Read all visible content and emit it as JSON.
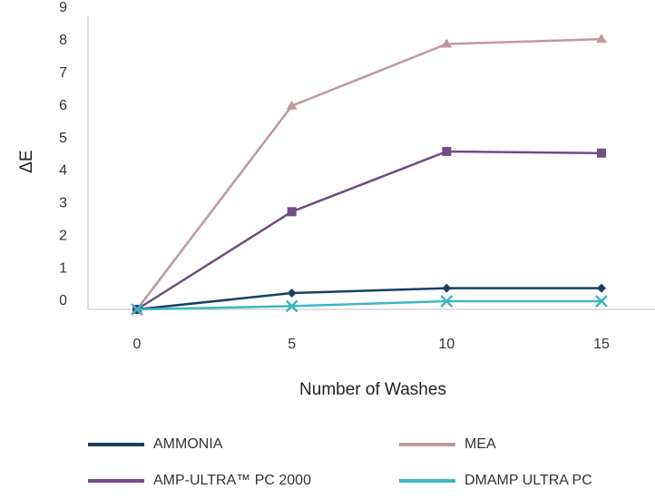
{
  "chart_data": {
    "type": "line",
    "title": "",
    "xlabel": "Number of Washes",
    "ylabel": "ΔE",
    "x": [
      0,
      5,
      10,
      15
    ],
    "xlim": [
      0,
      15
    ],
    "ylim": [
      0,
      9
    ],
    "y_ticks": [
      "0",
      "1",
      "2",
      "3",
      "4",
      "5",
      "6",
      "7",
      "8",
      "9"
    ],
    "x_ticks": [
      "0",
      "5",
      "10",
      "15"
    ],
    "grid": false,
    "legend_position": "bottom",
    "series": [
      {
        "name": "AMMONIA",
        "color": "#1a3f63",
        "marker": "diamond",
        "values": [
          0.0,
          0.5,
          0.65,
          0.65
        ]
      },
      {
        "name": "MEA",
        "color": "#c1979e",
        "marker": "triangle",
        "values": [
          0.0,
          6.25,
          8.15,
          8.3
        ]
      },
      {
        "name": "AMP-ULTRA™ PC 2000",
        "color": "#6f4d85",
        "marker": "square",
        "values": [
          0.0,
          3.0,
          4.85,
          4.8
        ]
      },
      {
        "name": "DMAMP ULTRA PC",
        "color": "#3fb6bf",
        "marker": "x",
        "values": [
          0.0,
          0.1,
          0.25,
          0.25
        ]
      }
    ]
  }
}
